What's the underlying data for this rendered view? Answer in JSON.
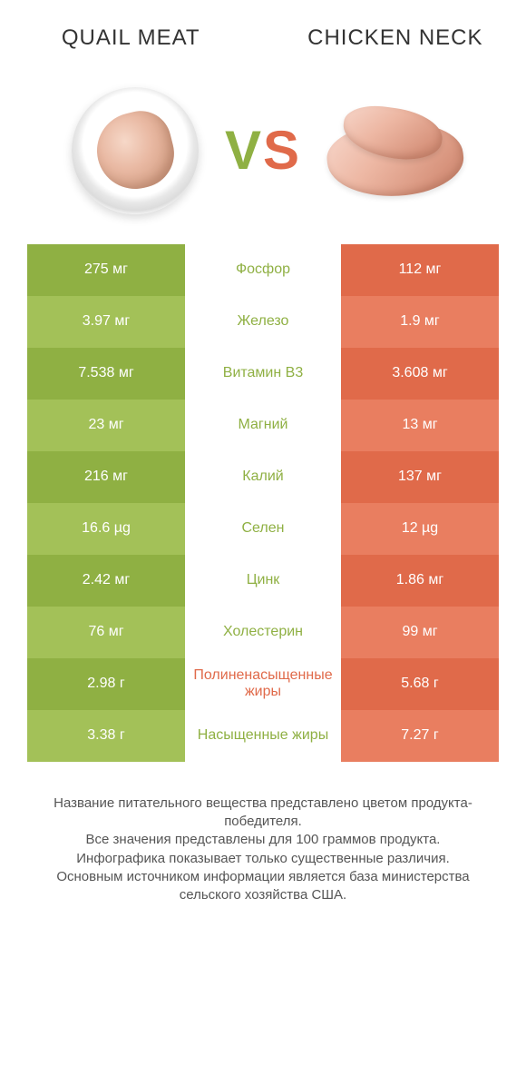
{
  "colors": {
    "green_dark": "#8fb043",
    "green_light": "#a3c158",
    "red_dark": "#e06a4a",
    "red_light": "#e97e60",
    "text_grey": "#555555",
    "white": "#ffffff"
  },
  "header": {
    "left_title": "QUAIL MEAT",
    "right_title": "CHICKEN\nNECK",
    "vs_v": "V",
    "vs_s": "S"
  },
  "rows": [
    {
      "left": "275 мг",
      "name": "Фосфор",
      "right": "112 мг",
      "winner": "left"
    },
    {
      "left": "3.97 мг",
      "name": "Железо",
      "right": "1.9 мг",
      "winner": "left"
    },
    {
      "left": "7.538 мг",
      "name": "Витамин B3",
      "right": "3.608 мг",
      "winner": "left"
    },
    {
      "left": "23 мг",
      "name": "Магний",
      "right": "13 мг",
      "winner": "left"
    },
    {
      "left": "216 мг",
      "name": "Калий",
      "right": "137 мг",
      "winner": "left"
    },
    {
      "left": "16.6 µg",
      "name": "Селен",
      "right": "12 µg",
      "winner": "left"
    },
    {
      "left": "2.42 мг",
      "name": "Цинк",
      "right": "1.86 мг",
      "winner": "left"
    },
    {
      "left": "76 мг",
      "name": "Холестерин",
      "right": "99 мг",
      "winner": "left"
    },
    {
      "left": "2.98 г",
      "name": "Полиненасыщенные жиры",
      "right": "5.68 г",
      "winner": "right"
    },
    {
      "left": "3.38 г",
      "name": "Насыщенные жиры",
      "right": "7.27 г",
      "winner": "left"
    }
  ],
  "footer": {
    "line1": "Название питательного вещества представлено цветом продукта-победителя.",
    "line2": "Все значения представлены для 100 граммов продукта.",
    "line3": "Инфографика показывает только существенные различия.",
    "line4": "Основным источником информации является база министерства сельского хозяйства США."
  }
}
